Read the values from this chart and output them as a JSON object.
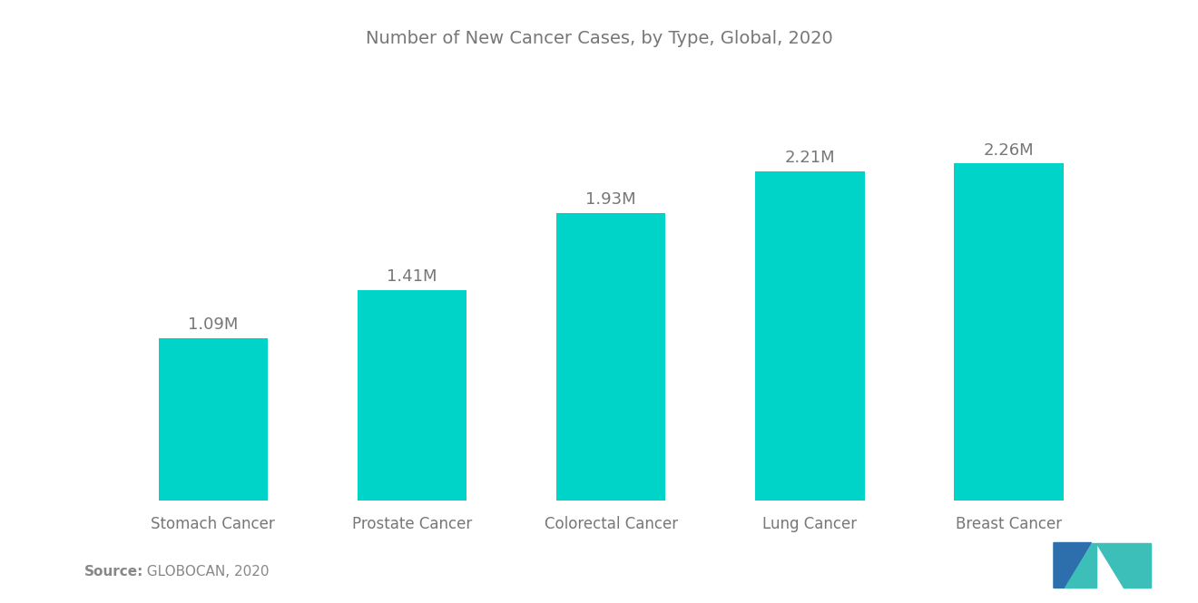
{
  "title": "Number of New Cancer Cases, by Type, Global, 2020",
  "categories": [
    "Stomach Cancer",
    "Prostate Cancer",
    "Colorectal Cancer",
    "Lung Cancer",
    "Breast Cancer"
  ],
  "values": [
    1.09,
    1.41,
    1.93,
    2.21,
    2.26
  ],
  "labels": [
    "1.09M",
    "1.41M",
    "1.93M",
    "2.21M",
    "2.26M"
  ],
  "bar_color": "#00D4C8",
  "background_color": "#FFFFFF",
  "title_color": "#777777",
  "label_color": "#777777",
  "tick_color": "#777777",
  "source_bold": "Source:",
  "source_text": "  GLOBOCAN, 2020",
  "source_color": "#888888",
  "ylim": [
    0,
    2.75
  ],
  "title_fontsize": 14,
  "label_fontsize": 13,
  "tick_fontsize": 12,
  "source_fontsize": 11,
  "bar_width": 0.55,
  "logo_color1": "#2C6FAC",
  "logo_color2": "#3BBFB8"
}
